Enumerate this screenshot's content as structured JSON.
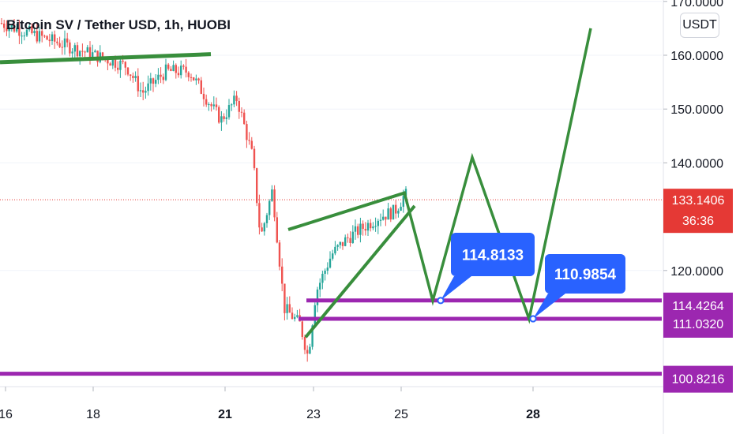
{
  "chart_data": {
    "type": "candlestick",
    "title": "Bitcoin SV / Tether USD, 1h, HUOBI",
    "currency": "USDT",
    "y_ticks": [
      "170.0000",
      "160.0000",
      "150.0000",
      "140.0000",
      "120.0000"
    ],
    "x_ticks": [
      {
        "label": "16",
        "bold": false
      },
      {
        "label": "18",
        "bold": false
      },
      {
        "label": "21",
        "bold": true
      },
      {
        "label": "23",
        "bold": false
      },
      {
        "label": "25",
        "bold": false
      },
      {
        "label": "28",
        "bold": true
      }
    ],
    "last_price": {
      "value": "133.1406",
      "countdown": "36:36",
      "color": "#e53935"
    },
    "levels": [
      {
        "value": "114.4264",
        "color": "#9c27b0"
      },
      {
        "value": "111.0320",
        "color": "#9c27b0"
      },
      {
        "value": "100.8216",
        "color": "#9c27b0"
      }
    ],
    "callouts": [
      {
        "value": "114.8133",
        "color": "#2962ff"
      },
      {
        "value": "110.9854",
        "color": "#2962ff"
      }
    ],
    "projection_color": "#388e3c"
  }
}
